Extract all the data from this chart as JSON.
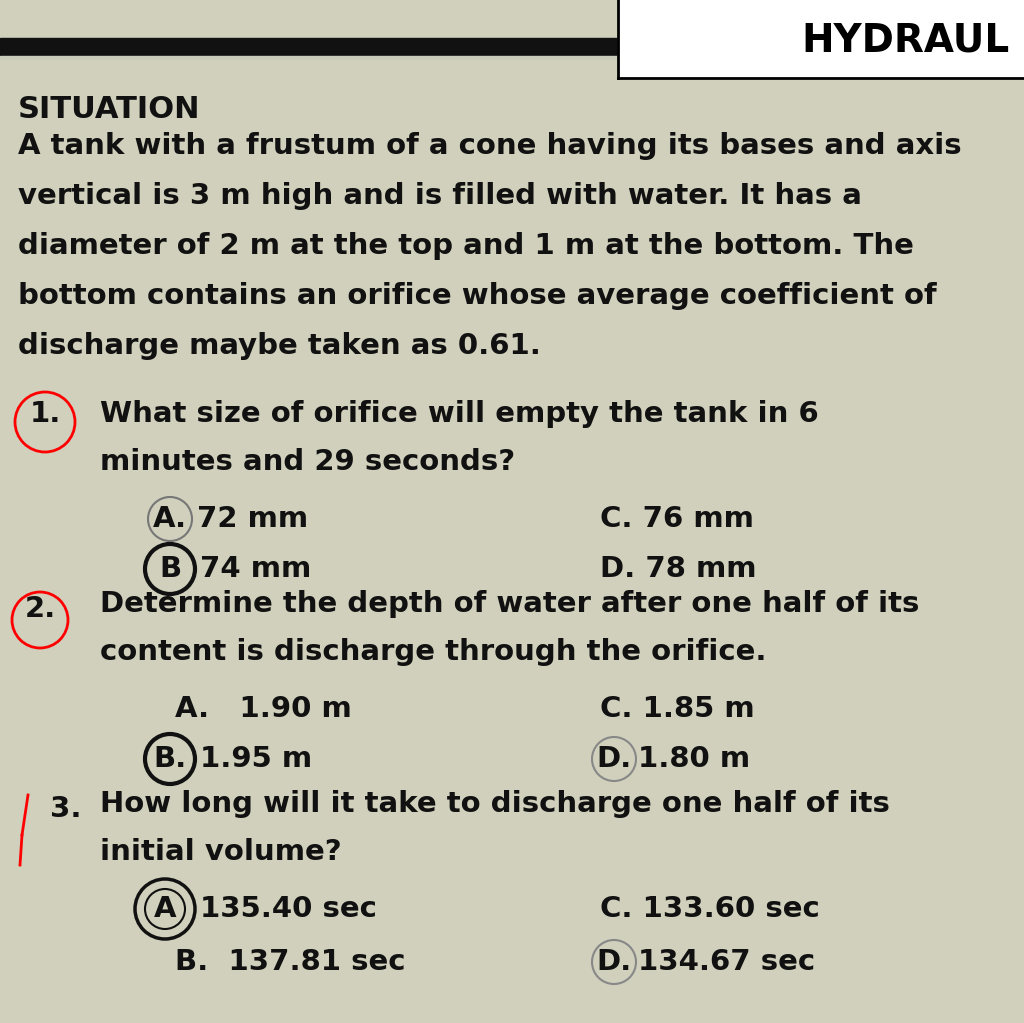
{
  "bg_color": "#d0d0bc",
  "text_color": "#111111",
  "header_text": "HYDRAUL",
  "situation_title": "SITUATION",
  "situation_body_lines": [
    "A tank with a frustum of a cone having its bases and axis",
    "vertical is 3 m high and is filled with water. It has a",
    "diameter of 2 m at the top and 1 m at the bottom. The",
    "bottom contains an orifice whose average coefficient of",
    "discharge maybe taken as 0.61."
  ],
  "q1_line1": "1.   What size of orifice will empty the tank in 6",
  "q1_line2": "      minutes and 29 seconds?",
  "q1_A": "A.  72 mm",
  "q1_B": "B   74 mm",
  "q1_C": "C. 76 mm",
  "q1_D": "D. 78 mm",
  "q2_line1": "2.  Determine the depth of water after one half of its",
  "q2_line2": "     content is discharge through the orifice.",
  "q2_A": "A.   1.90 m",
  "q2_B": "B.   1.95 m",
  "q2_C": "C. 1.85 m",
  "q2_D": "D. 1.80 m",
  "q3_line1": "3.   How long will it take to discharge one half of its",
  "q3_line2": "      initial volume?",
  "q3_A_txt": "135.40 sec",
  "q3_B": "B.  137.81 sec",
  "q3_C": "C. 133.60 sec",
  "q3_D": "D. 134.67 sec",
  "title_fs": 22,
  "body_fs": 21,
  "q_fs": 21,
  "ans_fs": 21,
  "header_fs": 28
}
